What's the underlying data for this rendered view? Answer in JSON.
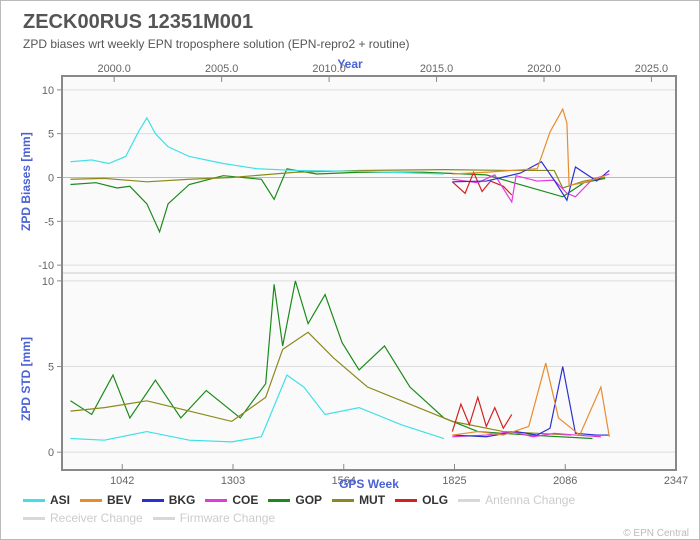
{
  "header": {
    "title": "ZECK00RUS 12351M001",
    "subtitle": "ZPD biases wrt weekly EPN troposphere solution (EPN-repro2 + routine)"
  },
  "axes": {
    "top_label": "Year",
    "bottom_label": "GPS Week",
    "year_ticks": [
      "2000.0",
      "2005.0",
      "2010.0",
      "2015.0",
      "2020.0",
      "2025.0"
    ],
    "year_tick_x": [
      118,
      225,
      335,
      444,
      553,
      662
    ],
    "gps_ticks": [
      "1042",
      "1303",
      "1564",
      "1825",
      "2086",
      "2347"
    ],
    "gps_tick_x": [
      97,
      204,
      314,
      423,
      532,
      641
    ],
    "panel1": {
      "ylabel": "ZPD Biases [mm]",
      "ylim": [
        -10,
        10
      ],
      "yticks": [
        -10,
        -5,
        0,
        5,
        10
      ]
    },
    "panel2": {
      "ylabel": "ZPD STD [mm]",
      "ylim": [
        0,
        10
      ],
      "yticks": [
        0,
        5,
        10
      ]
    }
  },
  "colors": {
    "ASI": "#3fe0e6",
    "BEV": "#e88b2d",
    "BKG": "#2a2fd0",
    "COE": "#e23ad8",
    "GOP": "#1a8a1a",
    "MUT": "#8a8a1a",
    "OLG": "#d42020",
    "ghost": "#d8d8d8",
    "frame": "#888888",
    "grid": "#dddddd",
    "label": "#4a62d4",
    "background": "#fafafa"
  },
  "chart": {
    "type": "line",
    "x_range_gpsweek": [
      900,
      2347
    ],
    "panel1_series_bias_mm": {
      "ASI": [
        [
          920,
          1.8
        ],
        [
          970,
          2.0
        ],
        [
          1010,
          1.6
        ],
        [
          1050,
          2.4
        ],
        [
          1080,
          5.2
        ],
        [
          1100,
          6.8
        ],
        [
          1120,
          5.0
        ],
        [
          1150,
          3.5
        ],
        [
          1200,
          2.4
        ],
        [
          1280,
          1.6
        ],
        [
          1360,
          1.0
        ],
        [
          1450,
          0.8
        ],
        [
          1600,
          0.7
        ],
        [
          1800,
          0.4
        ]
      ],
      "GOP": [
        [
          920,
          -0.8
        ],
        [
          980,
          -0.6
        ],
        [
          1030,
          -1.2
        ],
        [
          1060,
          -1.0
        ],
        [
          1100,
          -3.0
        ],
        [
          1130,
          -6.2
        ],
        [
          1150,
          -3.0
        ],
        [
          1200,
          -0.8
        ],
        [
          1280,
          0.2
        ],
        [
          1370,
          -0.2
        ],
        [
          1400,
          -2.5
        ],
        [
          1430,
          1.0
        ],
        [
          1500,
          0.4
        ],
        [
          1600,
          0.6
        ],
        [
          1750,
          0.6
        ],
        [
          1900,
          0.3
        ],
        [
          2080,
          -2.2
        ],
        [
          2130,
          -0.6
        ],
        [
          2180,
          -0.1
        ]
      ],
      "MUT": [
        [
          920,
          -0.2
        ],
        [
          1000,
          -0.1
        ],
        [
          1100,
          -0.5
        ],
        [
          1200,
          -0.2
        ],
        [
          1300,
          0.0
        ],
        [
          1450,
          0.6
        ],
        [
          1600,
          0.8
        ],
        [
          1800,
          0.9
        ],
        [
          1950,
          0.8
        ],
        [
          2060,
          0.8
        ],
        [
          2080,
          -1.2
        ],
        [
          2130,
          -0.4
        ],
        [
          2180,
          0.0
        ]
      ],
      "BEV": [
        [
          1820,
          0.4
        ],
        [
          1900,
          0.6
        ],
        [
          1960,
          0.8
        ],
        [
          2020,
          1.0
        ],
        [
          2050,
          5.2
        ],
        [
          2080,
          7.8
        ],
        [
          2090,
          6.2
        ],
        [
          2095,
          -0.9
        ],
        [
          2130,
          -0.6
        ],
        [
          2180,
          0.2
        ]
      ],
      "BKG": [
        [
          1820,
          -0.5
        ],
        [
          1900,
          -0.4
        ],
        [
          1980,
          0.5
        ],
        [
          2030,
          1.8
        ],
        [
          2060,
          -0.3
        ],
        [
          2090,
          -2.6
        ],
        [
          2110,
          1.2
        ],
        [
          2160,
          -0.4
        ],
        [
          2190,
          0.8
        ]
      ],
      "COE": [
        [
          1820,
          -0.2
        ],
        [
          1880,
          -0.6
        ],
        [
          1920,
          0.3
        ],
        [
          1960,
          -2.8
        ],
        [
          1970,
          0.2
        ],
        [
          2020,
          -0.4
        ],
        [
          2060,
          -0.3
        ],
        [
          2090,
          -1.8
        ],
        [
          2110,
          -2.2
        ],
        [
          2150,
          -0.2
        ],
        [
          2190,
          0.4
        ]
      ],
      "OLG": [
        [
          1820,
          -0.5
        ],
        [
          1850,
          -1.8
        ],
        [
          1870,
          0.6
        ],
        [
          1890,
          -1.6
        ],
        [
          1910,
          -0.4
        ],
        [
          1940,
          -1.0
        ],
        [
          1960,
          -2.0
        ]
      ]
    },
    "panel2_series_std_mm": {
      "ASI": [
        [
          920,
          0.8
        ],
        [
          1000,
          0.7
        ],
        [
          1100,
          1.2
        ],
        [
          1200,
          0.7
        ],
        [
          1300,
          0.6
        ],
        [
          1370,
          0.9
        ],
        [
          1430,
          4.5
        ],
        [
          1470,
          3.8
        ],
        [
          1520,
          2.2
        ],
        [
          1600,
          2.6
        ],
        [
          1700,
          1.6
        ],
        [
          1800,
          0.8
        ]
      ],
      "GOP": [
        [
          920,
          3.0
        ],
        [
          970,
          2.2
        ],
        [
          1020,
          4.5
        ],
        [
          1060,
          2.0
        ],
        [
          1120,
          4.2
        ],
        [
          1180,
          2.0
        ],
        [
          1240,
          3.6
        ],
        [
          1320,
          2.0
        ],
        [
          1380,
          4.0
        ],
        [
          1400,
          9.8
        ],
        [
          1420,
          6.2
        ],
        [
          1450,
          10.0
        ],
        [
          1480,
          7.5
        ],
        [
          1520,
          9.2
        ],
        [
          1560,
          6.4
        ],
        [
          1600,
          4.8
        ],
        [
          1660,
          6.2
        ],
        [
          1720,
          3.8
        ],
        [
          1800,
          2.0
        ],
        [
          1880,
          1.2
        ],
        [
          2000,
          1.0
        ],
        [
          2150,
          0.8
        ]
      ],
      "MUT": [
        [
          920,
          2.4
        ],
        [
          1000,
          2.6
        ],
        [
          1100,
          3.0
        ],
        [
          1200,
          2.4
        ],
        [
          1300,
          1.8
        ],
        [
          1380,
          3.2
        ],
        [
          1420,
          6.0
        ],
        [
          1480,
          7.0
        ],
        [
          1540,
          5.5
        ],
        [
          1620,
          3.8
        ],
        [
          1720,
          2.8
        ],
        [
          1820,
          1.8
        ],
        [
          1940,
          1.2
        ],
        [
          2100,
          1.0
        ]
      ],
      "BEV": [
        [
          1820,
          1.0
        ],
        [
          1880,
          1.2
        ],
        [
          1940,
          1.0
        ],
        [
          2000,
          1.5
        ],
        [
          2040,
          5.2
        ],
        [
          2070,
          2.0
        ],
        [
          2120,
          1.0
        ],
        [
          2170,
          3.8
        ],
        [
          2190,
          0.9
        ]
      ],
      "BKG": [
        [
          1820,
          1.0
        ],
        [
          1900,
          0.9
        ],
        [
          1970,
          1.2
        ],
        [
          2020,
          1.0
        ],
        [
          2050,
          1.4
        ],
        [
          2080,
          5.0
        ],
        [
          2110,
          1.1
        ],
        [
          2160,
          1.0
        ],
        [
          2190,
          1.0
        ]
      ],
      "COE": [
        [
          1820,
          0.9
        ],
        [
          1900,
          1.0
        ],
        [
          1960,
          1.2
        ],
        [
          2010,
          0.9
        ],
        [
          2060,
          1.1
        ],
        [
          2110,
          1.0
        ],
        [
          2170,
          0.9
        ]
      ],
      "OLG": [
        [
          1820,
          1.2
        ],
        [
          1840,
          2.8
        ],
        [
          1860,
          1.6
        ],
        [
          1880,
          3.2
        ],
        [
          1900,
          1.5
        ],
        [
          1920,
          2.6
        ],
        [
          1940,
          1.4
        ],
        [
          1960,
          2.2
        ]
      ]
    }
  },
  "legend": {
    "series": [
      "ASI",
      "BEV",
      "BKG",
      "COE",
      "GOP",
      "MUT",
      "OLG"
    ],
    "ghost": [
      "Antenna Change",
      "Receiver Change",
      "Firmware Change"
    ]
  },
  "credit": "© EPN Central"
}
